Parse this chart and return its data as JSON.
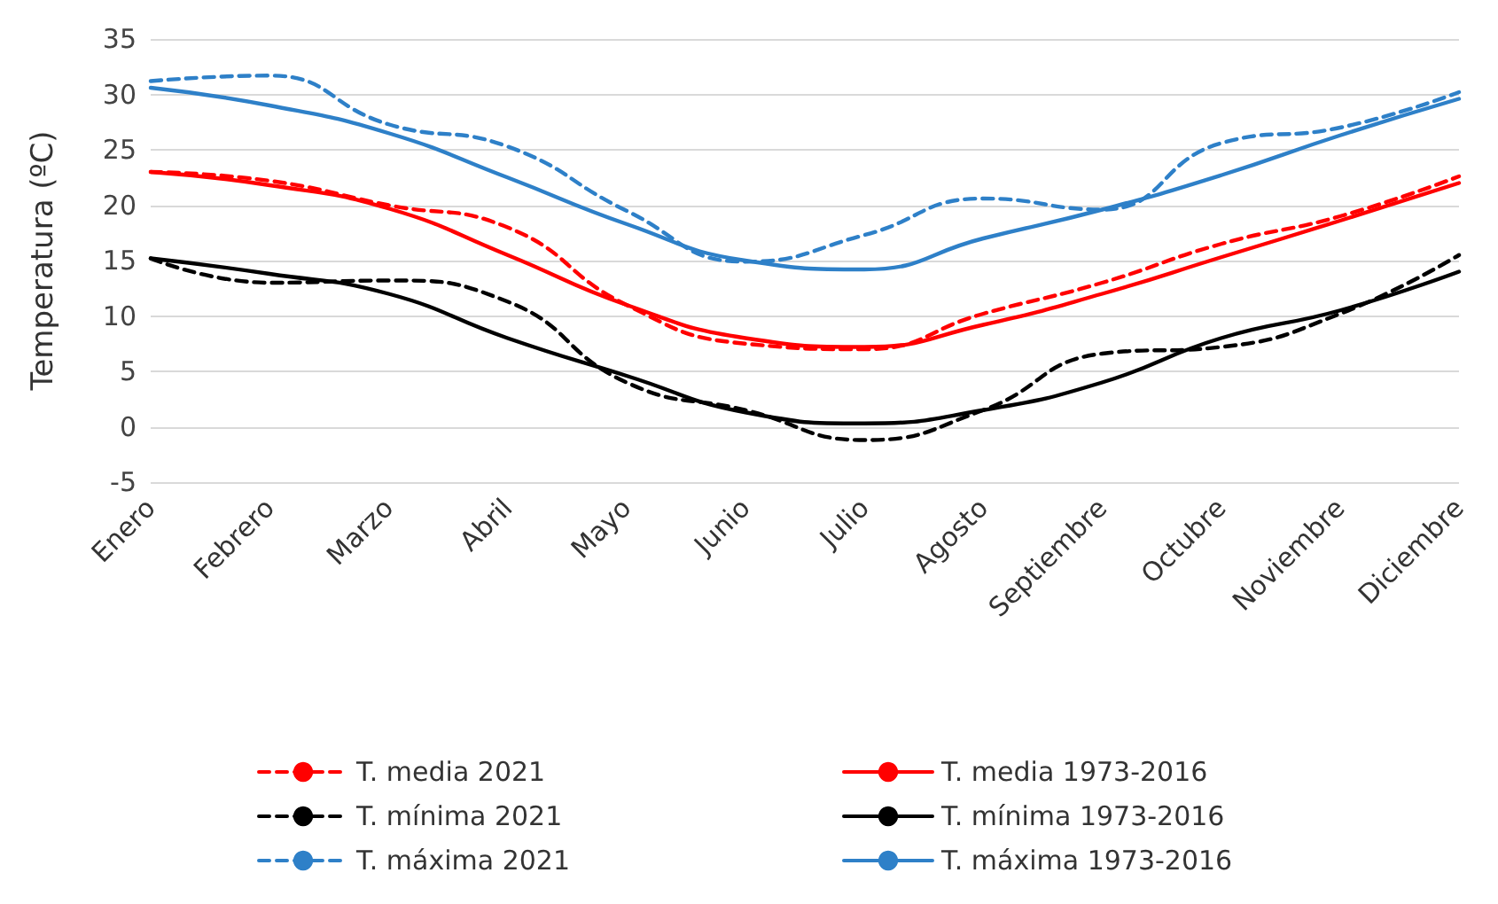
{
  "chart_data": {
    "type": "line",
    "ylabel": "Temperatura (ºC)",
    "categories": [
      "Enero",
      "Febrero",
      "Marzo",
      "Abril",
      "Mayo",
      "Junio",
      "Julio",
      "Agosto",
      "Septiembre",
      "Octubre",
      "Noviembre",
      "Diciembre"
    ],
    "ylim": [
      -5,
      35
    ],
    "yticks": [
      -5,
      0,
      5,
      10,
      15,
      20,
      25,
      30,
      35
    ],
    "grid": "y",
    "legend": "bottom",
    "marker": "none",
    "series": [
      {
        "name": "T. media 2021",
        "color": "#ff0000",
        "line_style": "dashed",
        "values": [
          23,
          22.2,
          20,
          18,
          11,
          7.5,
          7,
          10.2,
          13,
          16.5,
          19,
          22.6
        ]
      },
      {
        "name": "T. media 1973-2016",
        "color": "#ff0000",
        "line_style": "solid",
        "values": [
          23,
          21.8,
          19.7,
          15.5,
          11,
          8,
          7.2,
          9.2,
          12,
          15.3,
          18.6,
          22
        ]
      },
      {
        "name": "T. mínima 2021",
        "color": "#000000",
        "line_style": "dashed",
        "values": [
          15.2,
          13,
          13.2,
          11.3,
          4,
          1.5,
          -1.2,
          1.5,
          6.6,
          7.2,
          10.2,
          15.5
        ]
      },
      {
        "name": "T. mínima 1973-2016",
        "color": "#000000",
        "line_style": "solid",
        "values": [
          15.2,
          13.8,
          12,
          8,
          4.6,
          1.3,
          0.3,
          1.5,
          4,
          8,
          10.5,
          14
        ]
      },
      {
        "name": "T. máxima 2021",
        "color": "#2e80c8",
        "line_style": "dashed",
        "values": [
          31.2,
          31.7,
          27.3,
          25.3,
          19.5,
          14.9,
          17.3,
          20.6,
          19.6,
          25.6,
          27,
          30.2
        ]
      },
      {
        "name": "T. máxima 1973-2016",
        "color": "#2e80c8",
        "line_style": "solid",
        "values": [
          30.6,
          29,
          26.5,
          22.5,
          18.3,
          15,
          14.2,
          17,
          19.6,
          22.7,
          26.3,
          29.6
        ]
      }
    ]
  }
}
